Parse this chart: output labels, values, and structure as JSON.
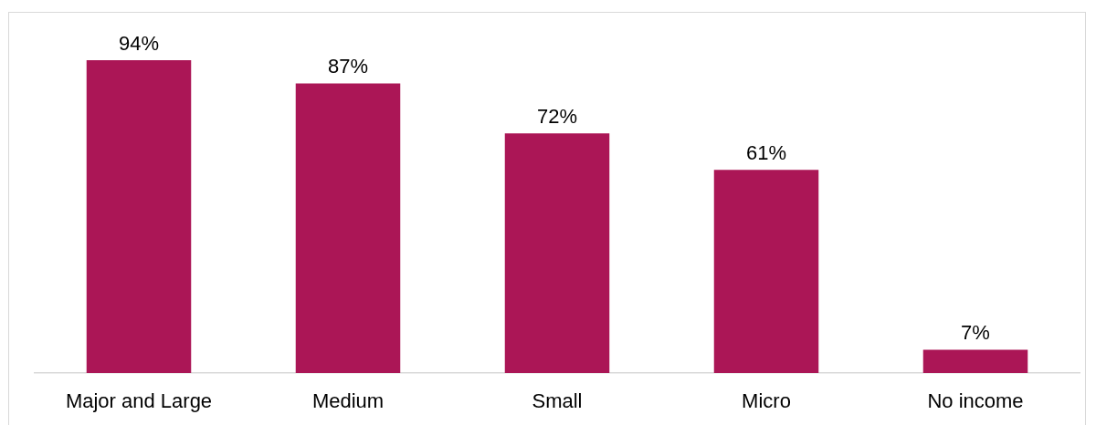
{
  "chart_data": {
    "type": "bar",
    "categories": [
      "Major and Large",
      "Medium",
      "Small",
      "Micro",
      "No income"
    ],
    "values": [
      94,
      87,
      72,
      61,
      7
    ],
    "value_labels": [
      "94%",
      "87%",
      "72%",
      "61%",
      "7%"
    ],
    "color": "#ab1656"
  }
}
